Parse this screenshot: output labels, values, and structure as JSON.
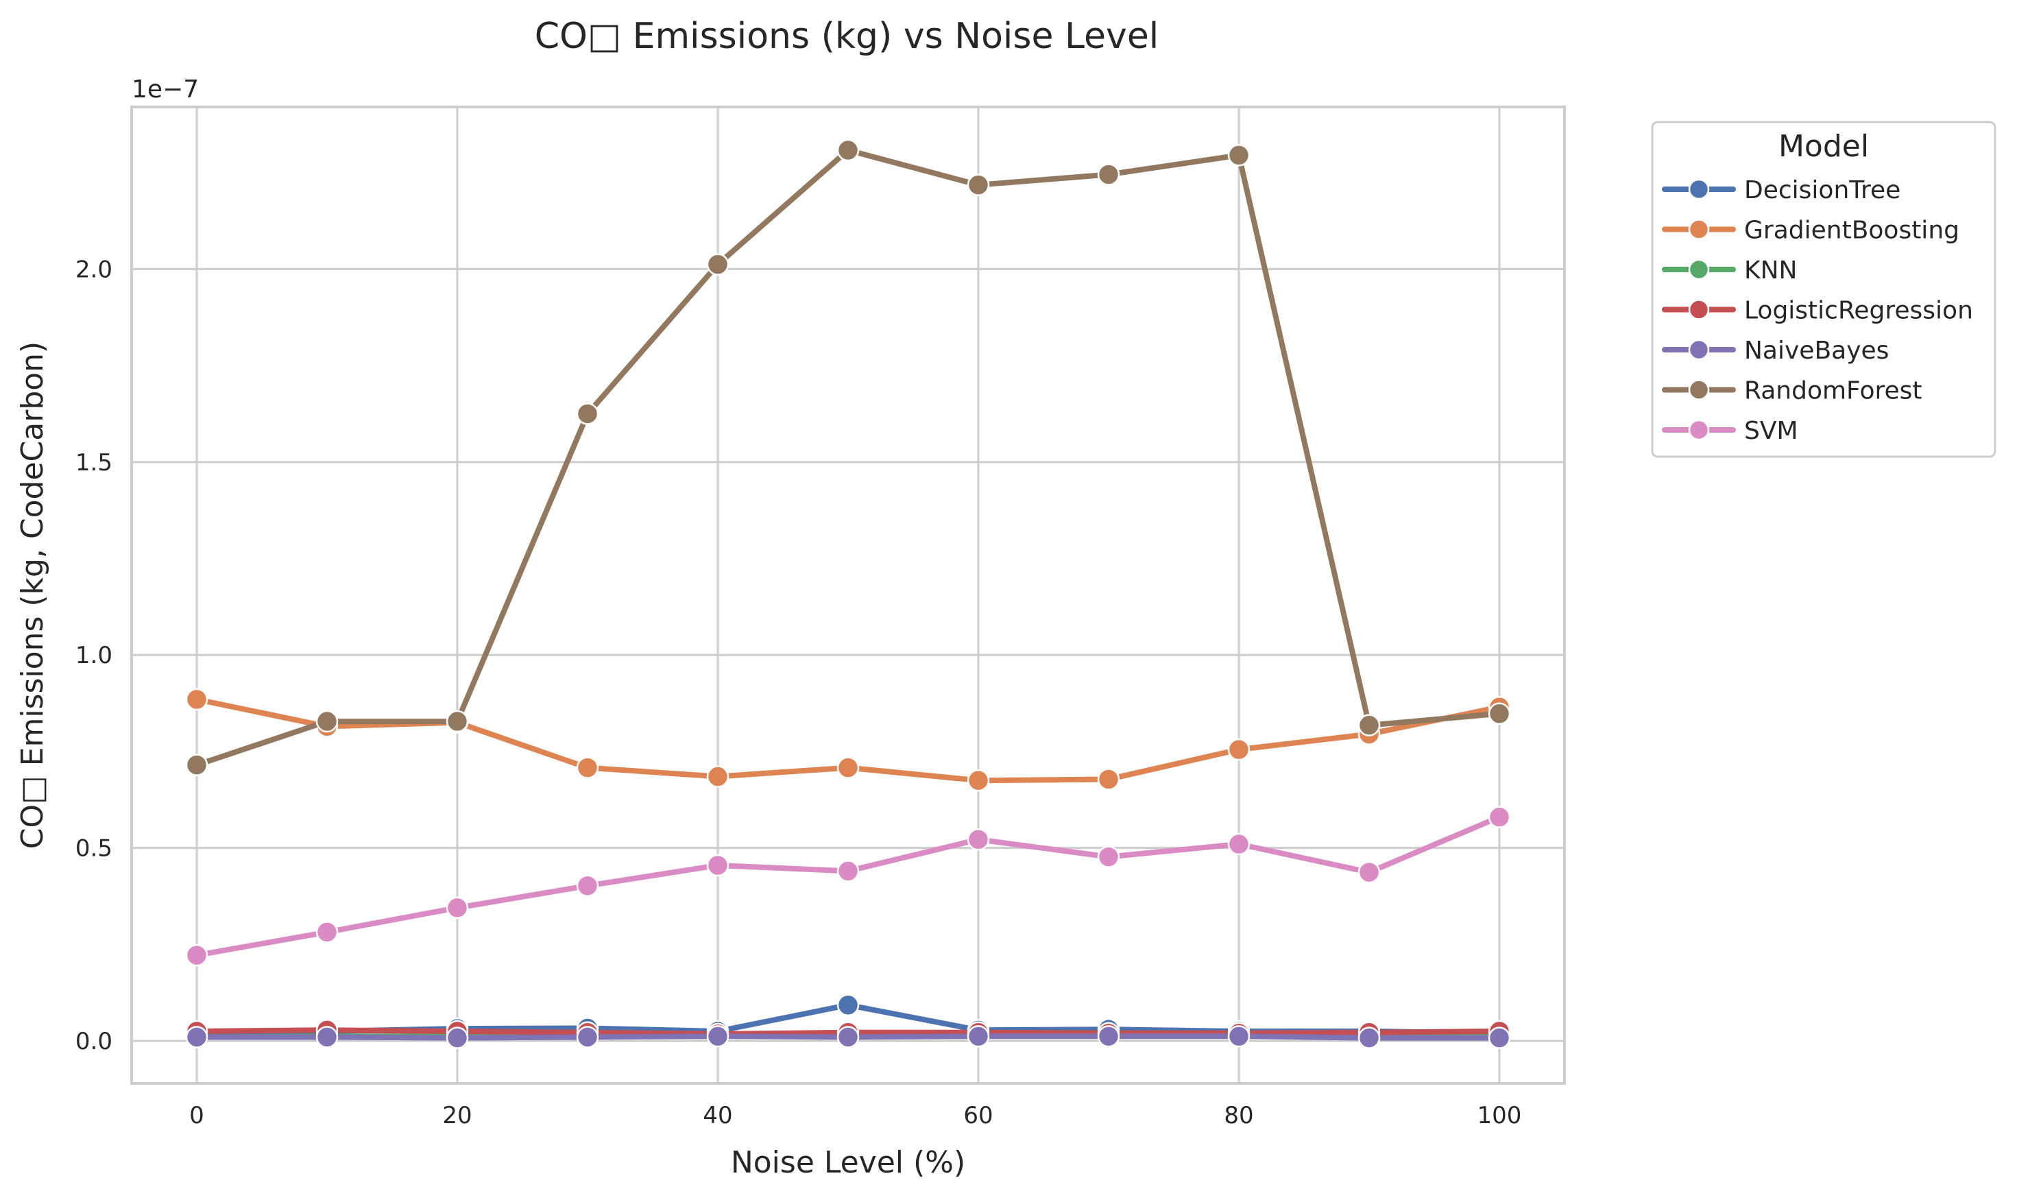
{
  "chart_data": {
    "type": "line",
    "title": "CO□ Emissions (kg) vs Noise Level",
    "xlabel": "Noise Level (%)",
    "ylabel": "CO□ Emissions (kg, CodeCarbon)",
    "y_scale_label": "1e−7",
    "x": [
      0,
      10,
      20,
      30,
      40,
      50,
      60,
      70,
      80,
      90,
      100
    ],
    "xlim": [
      -5,
      105
    ],
    "ylim": [
      -0.11,
      2.42
    ],
    "x_ticks": [
      0,
      20,
      40,
      60,
      80,
      100
    ],
    "x_tick_labels": [
      "0",
      "20",
      "40",
      "60",
      "80",
      "100"
    ],
    "y_ticks": [
      0.0,
      0.5,
      1.0,
      1.5,
      2.0
    ],
    "y_tick_labels": [
      "0.0",
      "0.5",
      "1.0",
      "1.5",
      "2.0"
    ],
    "grid": true,
    "legend": {
      "title": "Model",
      "placement": "outside-top-right"
    },
    "series": [
      {
        "name": "DecisionTree",
        "color": "#4c72b0",
        "values": [
          0.01,
          0.025,
          0.032,
          0.033,
          0.025,
          0.093,
          0.028,
          0.03,
          0.025,
          0.025,
          0.02
        ]
      },
      {
        "name": "GradientBoosting",
        "color": "#dd8452",
        "values": [
          0.885,
          0.815,
          0.825,
          0.708,
          0.685,
          0.708,
          0.675,
          0.678,
          0.755,
          0.795,
          0.865
        ]
      },
      {
        "name": "KNN",
        "color": "#55a868",
        "values": [
          0.01,
          0.012,
          0.012,
          0.012,
          0.012,
          0.012,
          0.012,
          0.012,
          0.012,
          0.012,
          0.01
        ]
      },
      {
        "name": "LogisticRegression",
        "color": "#c44e52",
        "values": [
          0.025,
          0.028,
          0.025,
          0.022,
          0.018,
          0.022,
          0.022,
          0.02,
          0.02,
          0.022,
          0.025
        ]
      },
      {
        "name": "NaiveBayes",
        "color": "#8172b3",
        "values": [
          0.01,
          0.01,
          0.008,
          0.01,
          0.012,
          0.01,
          0.012,
          0.012,
          0.012,
          0.008,
          0.008
        ]
      },
      {
        "name": "RandomForest",
        "color": "#937860",
        "values": [
          0.715,
          0.828,
          0.828,
          1.625,
          2.012,
          2.308,
          2.218,
          2.245,
          2.295,
          0.818,
          0.848
        ]
      },
      {
        "name": "SVM",
        "color": "#da8bc3",
        "values": [
          0.222,
          0.282,
          0.345,
          0.402,
          0.455,
          0.44,
          0.522,
          0.477,
          0.51,
          0.437,
          0.58
        ]
      }
    ]
  }
}
